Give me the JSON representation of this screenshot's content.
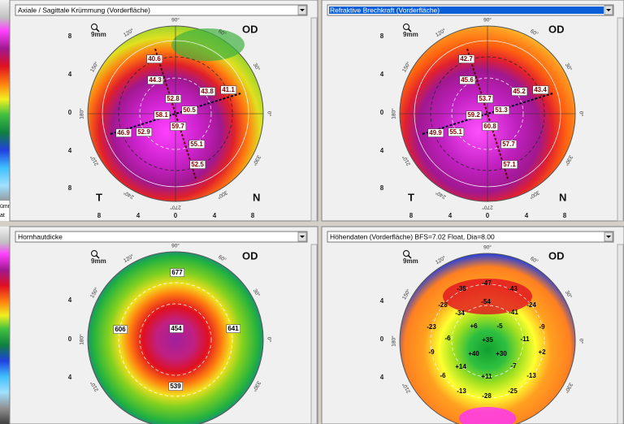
{
  "sidebar_labels": [
    "ümmung",
    "at"
  ],
  "panels": [
    {
      "title": "Axiale / Sagittale Krümmung (Vorderfläche)",
      "scale": "9mm",
      "eye": "OD",
      "temporal": "T",
      "nasal": "N",
      "x_ticks": [
        "8",
        "4",
        "0",
        "4",
        "8"
      ],
      "y_ticks": [
        "8",
        "4",
        "0",
        "4",
        "8"
      ],
      "angles": [
        "90°",
        "60°",
        "30°",
        "0°",
        "330°",
        "300°",
        "270°",
        "240°",
        "210°",
        "180°",
        "150°",
        "120°"
      ],
      "values": [
        "40.6",
        "44.3",
        "52.8",
        "43.8",
        "41.1",
        "50.5",
        "58.1",
        "59.7",
        "46.9",
        "52.9",
        "55.1",
        "52.5"
      ]
    },
    {
      "title": "Refraktive Brechkraft (Vorderfläche)",
      "scale": "9mm",
      "eye": "OD",
      "temporal": "T",
      "nasal": "N",
      "x_ticks": [
        "8",
        "4",
        "0",
        "4",
        "8"
      ],
      "y_ticks": [
        "8",
        "4",
        "0",
        "4",
        "8"
      ],
      "angles": [
        "90°",
        "60°",
        "30°",
        "0°",
        "330°",
        "300°",
        "270°",
        "240°",
        "210°",
        "180°",
        "150°",
        "120°"
      ],
      "values": [
        "42.7",
        "45.6",
        "53.7",
        "45.2",
        "43.4",
        "51.3",
        "59.2",
        "60.8",
        "49.9",
        "55.1",
        "57.7",
        "57.1"
      ]
    },
    {
      "title": "Hornhautdicke",
      "scale": "9mm",
      "eye": "OD",
      "y_ticks": [
        "4",
        "0",
        "4"
      ],
      "angles": [
        "90°",
        "60°",
        "30°",
        "0°",
        "330°",
        "210°",
        "180°",
        "150°",
        "120°"
      ],
      "values": [
        "677",
        "606",
        "454",
        "641",
        "539"
      ]
    },
    {
      "title": "Höhendaten (Vorderfläche)  BFS=7.02 Float, Dia=8.00",
      "scale": "9mm",
      "eye": "OD",
      "y_ticks": [
        "4",
        "0",
        "4"
      ],
      "angles": [
        "90°",
        "60°",
        "30°",
        "0°",
        "330°",
        "210°",
        "180°",
        "150°",
        "120°"
      ],
      "values": [
        "-47",
        "-43",
        "-35",
        "-54",
        "-28",
        "-24",
        "-34",
        "-41",
        "-23",
        "-9",
        "+6",
        "-5",
        "-6",
        "-11",
        "+35",
        "-9",
        "+2",
        "+40",
        "+30",
        "+14",
        "-7",
        "-6",
        "+11",
        "-13",
        "-13",
        "-25",
        "-28"
      ]
    }
  ]
}
